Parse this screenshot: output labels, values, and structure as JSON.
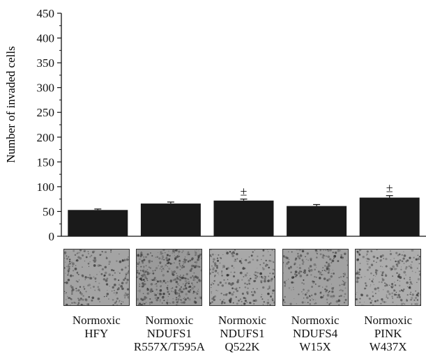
{
  "chart_data": {
    "type": "bar",
    "ylabel": "Number of invaded cells",
    "ylim": [
      0,
      450
    ],
    "yticks": [
      0,
      50,
      100,
      150,
      200,
      250,
      300,
      350,
      400,
      450
    ],
    "yticklabels": [
      "0",
      "50",
      "100",
      "150",
      "200",
      "250",
      "300",
      "350",
      "400",
      "450"
    ],
    "categories": [
      [
        "Normoxic",
        "HFY"
      ],
      [
        "Normoxic",
        "NDUFS1",
        "R557X/T595A"
      ],
      [
        "Normoxic",
        "NDUFS1",
        "Q522K"
      ],
      [
        "Normoxic",
        "NDUFS4",
        "W15X"
      ],
      [
        "Normoxic",
        "PINK",
        "W437X"
      ]
    ],
    "values": [
      53,
      66,
      72,
      61,
      78
    ],
    "errors": [
      2,
      3,
      3,
      3,
      4
    ],
    "significance": [
      "",
      "",
      "±",
      "",
      "±"
    ],
    "bar_color": "#1a1a1a",
    "grid": false,
    "thumbnails": [
      {
        "name": "micrograph-hfy",
        "tone": "#a4a4a4"
      },
      {
        "name": "micrograph-ndufs1-r557x",
        "tone": "#9a9a9a"
      },
      {
        "name": "micrograph-ndufs1-q522k",
        "tone": "#a8a8a8"
      },
      {
        "name": "micrograph-ndufs4-w15x",
        "tone": "#a2a2a2"
      },
      {
        "name": "micrograph-pink-w437x",
        "tone": "#adadad"
      }
    ]
  }
}
